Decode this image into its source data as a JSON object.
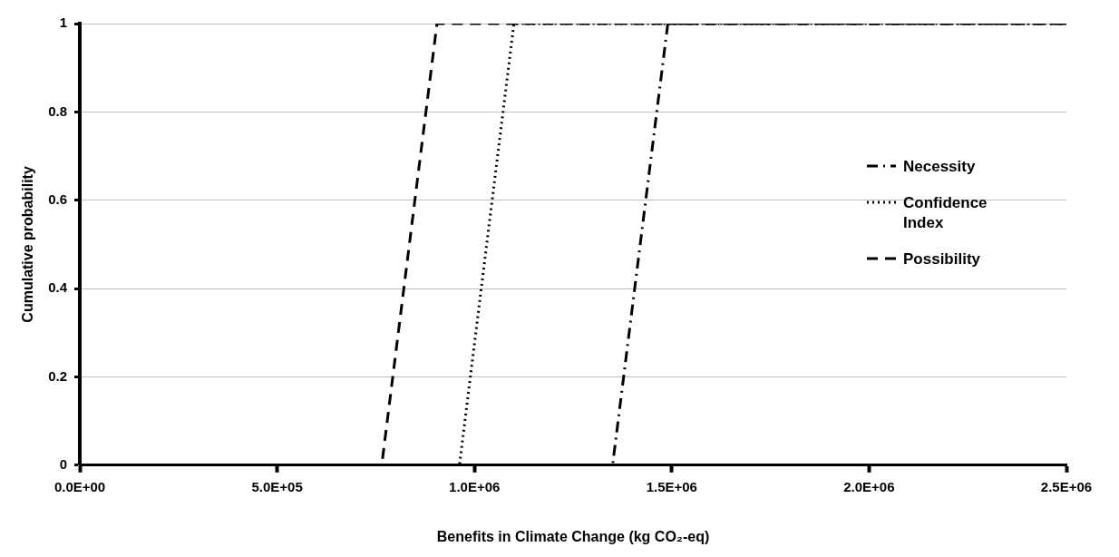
{
  "chart_data": {
    "type": "line",
    "xlabel": "Benefits in Climate Change (kg CO₂-eq)",
    "ylabel": "Cumulative probability",
    "xlim": [
      0,
      2500000
    ],
    "xticks": [
      {
        "value": 0,
        "label": "0.0E+00"
      },
      {
        "value": 500000,
        "label": "5.0E+05"
      },
      {
        "value": 1000000,
        "label": "1.0E+06"
      },
      {
        "value": 1500000,
        "label": "1.5E+06"
      },
      {
        "value": 2000000,
        "label": "2.0E+06"
      },
      {
        "value": 2500000,
        "label": "2.5E+06"
      }
    ],
    "ylim": [
      0,
      1
    ],
    "yticks": [
      0,
      0.2,
      0.4,
      0.6,
      0.8,
      1
    ],
    "grid": "y",
    "legend": "right",
    "marker": "none",
    "series": [
      {
        "name": "Necessity",
        "color": "#000000",
        "line_style": "dashdot",
        "x": [
          0,
          1350000,
          1490000,
          2500000
        ],
        "values": [
          0,
          0,
          1,
          1
        ]
      },
      {
        "name": "Confidence Index",
        "color": "#000000",
        "line_style": "dotted",
        "x": [
          0,
          962000,
          1100000,
          2500000
        ],
        "values": [
          0,
          0,
          1,
          1
        ]
      },
      {
        "name": "Possibility",
        "color": "#000000",
        "line_style": "dashed",
        "x": [
          0,
          765000,
          905000,
          2500000
        ],
        "values": [
          0,
          0,
          1,
          1
        ]
      }
    ]
  }
}
